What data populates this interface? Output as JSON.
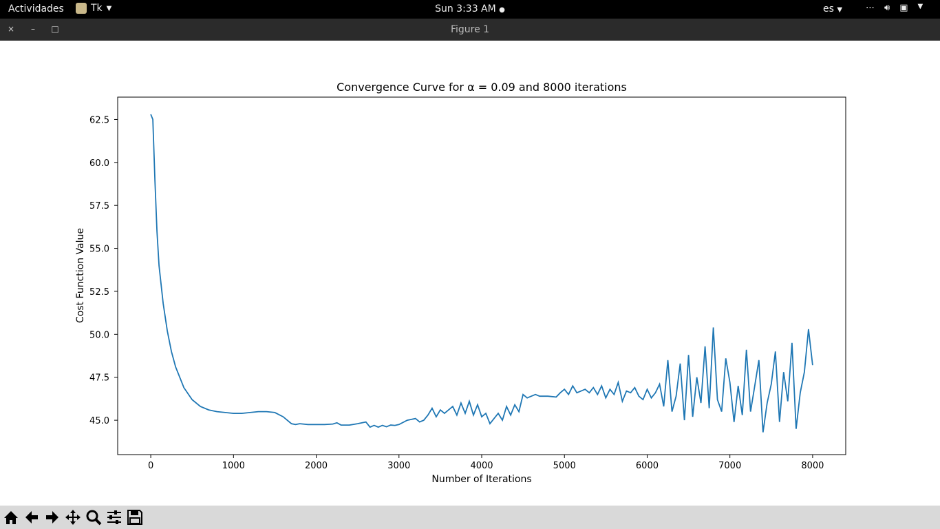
{
  "topbar": {
    "activities": "Actividades",
    "app_name": "Tk",
    "clock": "Sun  3:33 AM",
    "language": "es"
  },
  "window": {
    "title": "Figure 1",
    "close": "×",
    "minimize": "–",
    "maximize": "□"
  },
  "toolbar": {
    "buttons": [
      "home-icon",
      "back-arrow-icon",
      "forward-arrow-icon",
      "pan-icon",
      "zoom-icon",
      "subplots-icon",
      "save-icon"
    ]
  },
  "chart_data": {
    "type": "line",
    "title": "Convergence Curve for α = 0.09 and 8000 iterations",
    "xlabel": "Number of Iterations",
    "ylabel": "Cost Function Value",
    "xlim": [
      -400,
      8400
    ],
    "ylim": [
      43.0,
      63.8
    ],
    "xticks": [
      0,
      1000,
      2000,
      3000,
      4000,
      5000,
      6000,
      7000,
      8000
    ],
    "yticks": [
      45.0,
      47.5,
      50.0,
      52.5,
      55.0,
      57.5,
      60.0,
      62.5
    ],
    "ytick_labels": [
      "45.0",
      "47.5",
      "50.0",
      "52.5",
      "55.0",
      "57.5",
      "60.0",
      "62.5"
    ],
    "grid": false,
    "line_color": "#1f77b4",
    "series": [
      {
        "x": [
          0,
          25,
          50,
          75,
          100,
          150,
          200,
          250,
          300,
          400,
          500,
          600,
          700,
          800,
          900,
          1000,
          1100,
          1200,
          1300,
          1400,
          1500,
          1600,
          1700,
          1750,
          1800,
          1900,
          2000,
          2100,
          2200,
          2250,
          2300,
          2400,
          2500,
          2600,
          2650,
          2700,
          2750,
          2800,
          2850,
          2900,
          2950,
          3000,
          3100,
          3200,
          3250,
          3300,
          3350,
          3400,
          3450,
          3500,
          3550,
          3600,
          3650,
          3700,
          3750,
          3800,
          3850,
          3900,
          3950,
          4000,
          4050,
          4100,
          4150,
          4200,
          4250,
          4300,
          4350,
          4400,
          4450,
          4500,
          4550,
          4600,
          4650,
          4700,
          4800,
          4900,
          4950,
          5000,
          5050,
          5100,
          5150,
          5200,
          5250,
          5300,
          5350,
          5400,
          5450,
          5500,
          5550,
          5600,
          5650,
          5700,
          5750,
          5800,
          5850,
          5900,
          5950,
          6000,
          6050,
          6100,
          6150,
          6200,
          6250,
          6300,
          6350,
          6400,
          6450,
          6500,
          6550,
          6600,
          6650,
          6700,
          6750,
          6800,
          6850,
          6900,
          6950,
          7000,
          7050,
          7100,
          7150,
          7200,
          7250,
          7300,
          7350,
          7400,
          7450,
          7500,
          7550,
          7600,
          7650,
          7700,
          7750,
          7800,
          7850,
          7900,
          7950,
          8000
        ],
        "y": [
          62.8,
          62.5,
          59.0,
          56.0,
          54.0,
          51.8,
          50.2,
          49.0,
          48.1,
          46.9,
          46.2,
          45.8,
          45.6,
          45.5,
          45.45,
          45.4,
          45.4,
          45.45,
          45.5,
          45.5,
          45.45,
          45.2,
          44.8,
          44.75,
          44.8,
          44.75,
          44.75,
          44.75,
          44.78,
          44.85,
          44.72,
          44.72,
          44.8,
          44.9,
          44.6,
          44.7,
          44.6,
          44.7,
          44.62,
          44.72,
          44.7,
          44.75,
          45.0,
          45.1,
          44.9,
          45.0,
          45.3,
          45.7,
          45.2,
          45.6,
          45.4,
          45.6,
          45.8,
          45.3,
          46.0,
          45.4,
          46.1,
          45.3,
          45.9,
          45.2,
          45.4,
          44.8,
          45.1,
          45.4,
          45.0,
          45.8,
          45.3,
          45.9,
          45.5,
          46.5,
          46.3,
          46.4,
          46.5,
          46.4,
          46.4,
          46.35,
          46.6,
          46.8,
          46.5,
          47.0,
          46.6,
          46.7,
          46.8,
          46.6,
          46.9,
          46.5,
          47.0,
          46.3,
          46.8,
          46.5,
          47.2,
          46.1,
          46.7,
          46.6,
          46.9,
          46.4,
          46.2,
          46.8,
          46.3,
          46.6,
          47.1,
          45.8,
          48.5,
          45.5,
          46.4,
          48.3,
          45.0,
          48.8,
          45.2,
          47.5,
          46.0,
          49.3,
          45.7,
          50.4,
          46.2,
          45.5,
          48.6,
          47.2,
          44.9,
          47.0,
          45.3,
          49.1,
          45.5,
          47.0,
          48.5,
          44.3,
          46.0,
          47.1,
          49.0,
          44.9,
          47.8,
          46.1,
          49.5,
          44.5,
          46.6,
          47.8,
          50.3,
          48.2
        ]
      }
    ]
  }
}
